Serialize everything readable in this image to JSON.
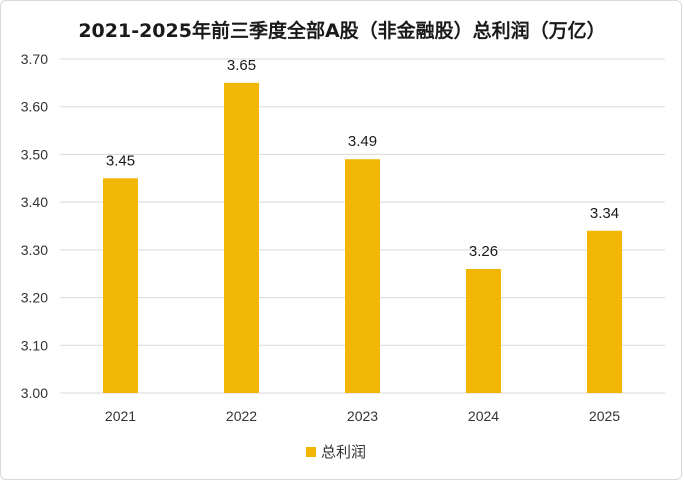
{
  "chart_data": {
    "type": "bar",
    "title": "2021-2025年前三季度全部A股（非金融股）总利润（万亿）",
    "categories": [
      "2021",
      "2022",
      "2023",
      "2024",
      "2025"
    ],
    "series": [
      {
        "name": "总利润",
        "values": [
          3.45,
          3.65,
          3.49,
          3.26,
          3.34
        ],
        "color": "#F2B705"
      }
    ],
    "ylim": [
      3.0,
      3.7
    ],
    "yticks": [
      "3.00",
      "3.10",
      "3.20",
      "3.30",
      "3.40",
      "3.50",
      "3.60",
      "3.70"
    ],
    "data_labels": [
      "3.45",
      "3.65",
      "3.49",
      "3.26",
      "3.34"
    ],
    "grid": true,
    "legend_position": "bottom"
  }
}
